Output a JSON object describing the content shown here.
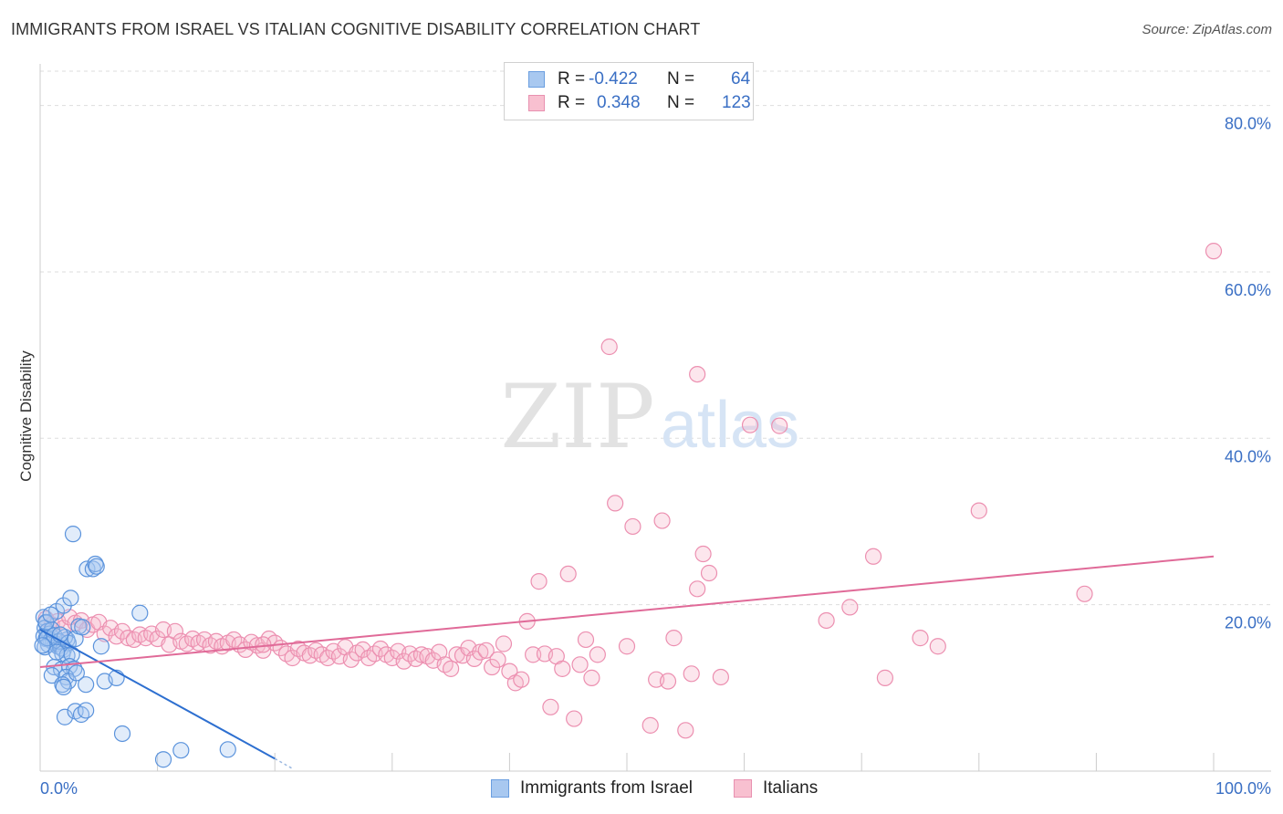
{
  "title": "IMMIGRANTS FROM ISRAEL VS ITALIAN COGNITIVE DISABILITY CORRELATION CHART",
  "source": "Source: ZipAtlas.com",
  "watermark": {
    "zip": "ZIP",
    "atlas": "atlas"
  },
  "legend": {
    "rows": [
      {
        "r_label": "R =",
        "r_value": "-0.422",
        "n_label": "N =",
        "n_value": "64",
        "color": "#a8c8f0",
        "border": "#6a9ee0"
      },
      {
        "r_label": "R =",
        "r_value": "0.348",
        "n_label": "N =",
        "n_value": "123",
        "color": "#f8c0d0",
        "border": "#e890b0"
      }
    ]
  },
  "colors": {
    "blue": "#5b93dc",
    "blue_line": "#2d6fd0",
    "pink": "#ec8fb0",
    "pink_line": "#e06a98",
    "tick_text": "#3a6fc4",
    "grid": "#dddddd"
  },
  "chart_data": {
    "type": "scatter",
    "title": "IMMIGRANTS FROM ISRAEL VS ITALIAN COGNITIVE DISABILITY CORRELATION CHART",
    "xlabel": "",
    "ylabel": "Cognitive Disability",
    "xlim": [
      0,
      100
    ],
    "ylim": [
      0,
      85
    ],
    "x_tick_labels": [
      "0.0%",
      "100.0%"
    ],
    "y_ticks": [
      20,
      40,
      60,
      80
    ],
    "y_tick_labels": [
      "20.0%",
      "40.0%",
      "60.0%",
      "80.0%"
    ],
    "grid": true,
    "legend_position": "bottom",
    "series": [
      {
        "name": "Immigrants from Israel",
        "color": "#5b93dc",
        "trend": {
          "x": [
            0,
            20
          ],
          "y": [
            17.0,
            1.5
          ],
          "dash_to": [
            21.5,
            0.3
          ]
        },
        "points": [
          [
            0.3,
            18.5
          ],
          [
            0.5,
            17.8
          ],
          [
            0.4,
            17.2
          ],
          [
            0.6,
            16.8
          ],
          [
            0.8,
            16.5
          ],
          [
            0.3,
            16.2
          ],
          [
            0.5,
            15.9
          ],
          [
            0.9,
            15.7
          ],
          [
            1.1,
            15.5
          ],
          [
            1.3,
            15.3
          ],
          [
            0.7,
            15.2
          ],
          [
            1.5,
            15.0
          ],
          [
            1.8,
            14.8
          ],
          [
            2.0,
            14.6
          ],
          [
            2.3,
            15.8
          ],
          [
            0.4,
            14.9
          ],
          [
            0.6,
            16.0
          ],
          [
            1.0,
            17.0
          ],
          [
            1.2,
            16.3
          ],
          [
            1.6,
            15.6
          ],
          [
            2.1,
            16.1
          ],
          [
            2.4,
            15.4
          ],
          [
            3.0,
            15.9
          ],
          [
            3.3,
            17.4
          ],
          [
            3.6,
            17.3
          ],
          [
            1.4,
            19.2
          ],
          [
            2.0,
            19.9
          ],
          [
            2.6,
            20.8
          ],
          [
            2.8,
            28.5
          ],
          [
            4.0,
            24.3
          ],
          [
            4.5,
            24.3
          ],
          [
            4.7,
            24.9
          ],
          [
            4.8,
            24.6
          ],
          [
            1.9,
            14.1
          ],
          [
            2.3,
            13.9
          ],
          [
            2.7,
            14.0
          ],
          [
            1.2,
            12.5
          ],
          [
            1.8,
            12.2
          ],
          [
            2.5,
            12.6
          ],
          [
            2.9,
            12.3
          ],
          [
            1.0,
            11.5
          ],
          [
            2.2,
            11.3
          ],
          [
            2.4,
            10.8
          ],
          [
            1.9,
            10.4
          ],
          [
            2.0,
            10.1
          ],
          [
            3.1,
            11.8
          ],
          [
            3.9,
            10.4
          ],
          [
            5.5,
            10.8
          ],
          [
            6.5,
            11.2
          ],
          [
            5.2,
            15.0
          ],
          [
            8.5,
            19.0
          ],
          [
            2.1,
            6.5
          ],
          [
            3.0,
            7.2
          ],
          [
            3.5,
            6.8
          ],
          [
            3.9,
            7.3
          ],
          [
            7.0,
            4.5
          ],
          [
            10.5,
            1.4
          ],
          [
            12.0,
            2.5
          ],
          [
            16.0,
            2.6
          ],
          [
            0.5,
            17.9
          ],
          [
            0.9,
            18.8
          ],
          [
            1.7,
            16.4
          ],
          [
            0.2,
            15.1
          ],
          [
            1.4,
            14.3
          ]
        ]
      },
      {
        "name": "Italians",
        "color": "#ec8fb0",
        "trend": {
          "x": [
            0,
            100
          ],
          "y": [
            12.5,
            25.8
          ]
        },
        "points": [
          [
            0.5,
            18.3
          ],
          [
            1.0,
            17.6
          ],
          [
            1.5,
            18.0
          ],
          [
            2.0,
            17.2
          ],
          [
            2.5,
            18.5
          ],
          [
            3.0,
            17.8
          ],
          [
            3.5,
            18.1
          ],
          [
            4.0,
            17.0
          ],
          [
            4.5,
            17.6
          ],
          [
            5.0,
            17.9
          ],
          [
            5.5,
            16.5
          ],
          [
            6.0,
            17.2
          ],
          [
            6.5,
            16.2
          ],
          [
            7.0,
            16.8
          ],
          [
            7.5,
            16.0
          ],
          [
            8.0,
            15.8
          ],
          [
            8.5,
            16.4
          ],
          [
            9.0,
            16.0
          ],
          [
            9.5,
            16.5
          ],
          [
            10.0,
            15.9
          ],
          [
            10.5,
            17.0
          ],
          [
            11.0,
            15.2
          ],
          [
            11.5,
            16.8
          ],
          [
            12.0,
            15.6
          ],
          [
            12.5,
            15.3
          ],
          [
            13.0,
            15.9
          ],
          [
            13.5,
            15.4
          ],
          [
            14.0,
            15.8
          ],
          [
            14.5,
            15.1
          ],
          [
            15.0,
            15.6
          ],
          [
            15.5,
            15.0
          ],
          [
            16.0,
            15.4
          ],
          [
            16.5,
            15.8
          ],
          [
            17.0,
            15.2
          ],
          [
            17.5,
            14.6
          ],
          [
            18.0,
            15.5
          ],
          [
            18.5,
            15.1
          ],
          [
            19.0,
            14.5
          ],
          [
            19.5,
            15.9
          ],
          [
            20.0,
            15.4
          ],
          [
            20.5,
            14.8
          ],
          [
            21.0,
            14.1
          ],
          [
            21.5,
            13.6
          ],
          [
            22.0,
            14.7
          ],
          [
            22.5,
            14.2
          ],
          [
            23.0,
            13.9
          ],
          [
            23.5,
            14.5
          ],
          [
            24.0,
            14.0
          ],
          [
            24.5,
            13.6
          ],
          [
            25.0,
            14.4
          ],
          [
            25.5,
            13.8
          ],
          [
            26.0,
            14.9
          ],
          [
            26.5,
            13.4
          ],
          [
            27.0,
            14.2
          ],
          [
            27.5,
            14.6
          ],
          [
            28.0,
            13.6
          ],
          [
            28.5,
            14.1
          ],
          [
            29.0,
            14.7
          ],
          [
            29.5,
            14.0
          ],
          [
            30.0,
            13.6
          ],
          [
            30.5,
            14.4
          ],
          [
            31.0,
            13.2
          ],
          [
            31.5,
            14.1
          ],
          [
            32.0,
            13.5
          ],
          [
            32.5,
            14.0
          ],
          [
            33.0,
            13.8
          ],
          [
            33.5,
            13.3
          ],
          [
            34.0,
            14.3
          ],
          [
            34.5,
            12.8
          ],
          [
            35.0,
            12.3
          ],
          [
            35.5,
            14.0
          ],
          [
            36.0,
            13.9
          ],
          [
            36.5,
            14.8
          ],
          [
            37.0,
            13.5
          ],
          [
            37.5,
            14.3
          ],
          [
            38.0,
            14.5
          ],
          [
            38.5,
            12.5
          ],
          [
            39.0,
            13.4
          ],
          [
            39.5,
            15.3
          ],
          [
            40.0,
            12.0
          ],
          [
            40.5,
            10.6
          ],
          [
            41.0,
            11.0
          ],
          [
            41.5,
            18.0
          ],
          [
            42.0,
            14.0
          ],
          [
            42.5,
            22.8
          ],
          [
            43.0,
            14.1
          ],
          [
            43.5,
            7.7
          ],
          [
            44.0,
            13.8
          ],
          [
            44.5,
            12.3
          ],
          [
            45.0,
            23.7
          ],
          [
            45.5,
            6.3
          ],
          [
            46.0,
            12.8
          ],
          [
            46.5,
            15.8
          ],
          [
            47.0,
            11.2
          ],
          [
            47.5,
            14.0
          ],
          [
            48.5,
            51.0
          ],
          [
            49.0,
            32.2
          ],
          [
            50.0,
            15.0
          ],
          [
            50.5,
            29.4
          ],
          [
            52.0,
            5.5
          ],
          [
            52.5,
            11.0
          ],
          [
            53.0,
            30.1
          ],
          [
            53.5,
            10.8
          ],
          [
            54.0,
            16.0
          ],
          [
            55.0,
            4.9
          ],
          [
            55.5,
            11.7
          ],
          [
            56.0,
            47.7
          ],
          [
            56.5,
            26.1
          ],
          [
            56.0,
            21.9
          ],
          [
            57.0,
            23.8
          ],
          [
            58.0,
            11.3
          ],
          [
            60.5,
            41.6
          ],
          [
            63.0,
            41.5
          ],
          [
            67.0,
            18.1
          ],
          [
            69.0,
            19.7
          ],
          [
            71.0,
            25.8
          ],
          [
            72.0,
            11.2
          ],
          [
            75.0,
            16.0
          ],
          [
            76.5,
            15.0
          ],
          [
            80.0,
            31.3
          ],
          [
            89.0,
            21.3
          ],
          [
            100.0,
            62.5
          ],
          [
            19.0,
            15.2
          ]
        ]
      }
    ]
  },
  "axis_label_x_left": "0.0%",
  "axis_label_x_right": "100.0%",
  "ylabel": "Cognitive Disability",
  "bottom_legend": {
    "series1": "Immigrants from Israel",
    "series2": "Italians"
  }
}
